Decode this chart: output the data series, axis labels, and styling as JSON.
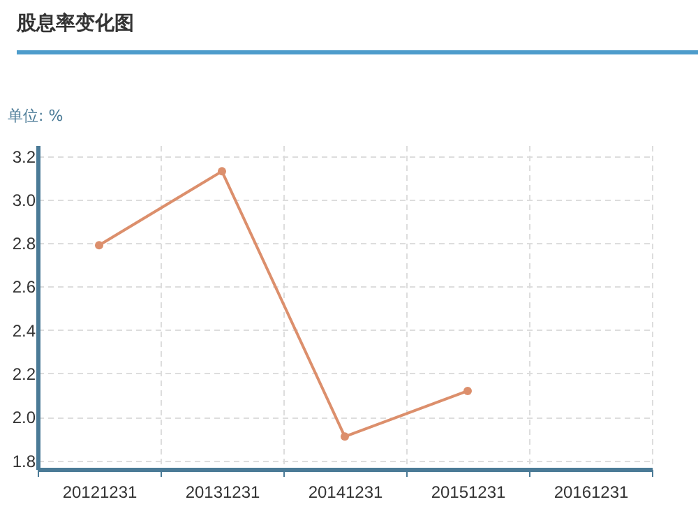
{
  "chart_data": {
    "type": "line",
    "title": "股息率变化图",
    "ylabel": "单位: %",
    "categories": [
      "20121231",
      "20131231",
      "20141231",
      "20151231",
      "20161231"
    ],
    "series": [
      {
        "color": "#dc8f6c",
        "values": [
          2.79,
          3.13,
          1.91,
          2.12,
          null
        ]
      }
    ],
    "ylim": [
      1.76,
      3.25
    ],
    "yticks": [
      1.8,
      {
        "value": 2,
        "label": "2.0"
      },
      2.2,
      2.4,
      2.6,
      2.8,
      {
        "value": 3,
        "label": "3.0"
      },
      3.2
    ],
    "grid": true,
    "marker": "circle",
    "line_style": "solid",
    "legend": false
  }
}
